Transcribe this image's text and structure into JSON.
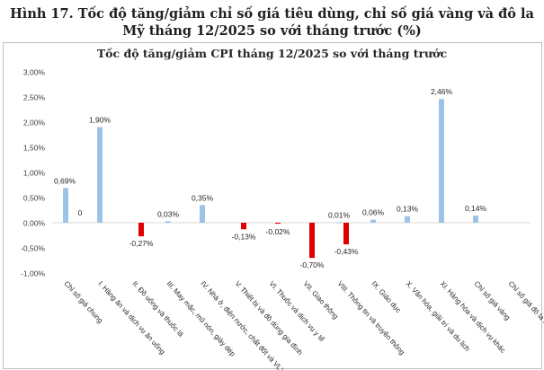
{
  "figure_title_line1": "Hình 17. Tốc độ tăng/giảm chỉ số giá tiêu dùng, chỉ số giá vàng và đô la",
  "figure_title_line2": "Mỹ tháng 12/2025 so với tháng trước (%)",
  "colors": {
    "series_a": "#9dc3e6",
    "series_b": "#e00000",
    "grid": "#d9d9d9",
    "axis_text": "#404040"
  },
  "chart_data": {
    "type": "bar",
    "title": "Tốc độ tăng/giảm CPI tháng 12/2025 so với tháng trước",
    "xlabel": "",
    "ylabel": "",
    "ylim": [
      -1.0,
      3.0
    ],
    "yticks": [
      3.0,
      2.5,
      2.0,
      1.5,
      1.0,
      0.5,
      0.0,
      -0.5,
      -1.0
    ],
    "ytick_labels": [
      "3,00%",
      "2,50%",
      "2,00%",
      "1,50%",
      "1,00%",
      "0,50%",
      "0,00%",
      "-0,50%",
      "-1,00%"
    ],
    "grid": false,
    "categories": [
      "Chỉ số giá chung",
      "I. Hàng ăn và dịch vụ ăn uống",
      "II. Đồ uống và thuốc lá",
      "III. May mặc, mũ nón, giày dép",
      "IV. Nhà ở, điện nước, chất đốt và VLXD",
      "V. Thiết bị và đồ dùng gia đình",
      "VI. Thuốc và dịch vụ y tế",
      "VII. Giao thông",
      "VIII. Thông tin và truyền thông",
      "IX. Giáo dục",
      "X. Văn hóa, giải trí và du lịch",
      "XI. Hàng hóa và dịch vụ khác",
      "Chỉ số giá vàng",
      "Chỉ số giá đô la Mỹ"
    ],
    "series": [
      {
        "values": [
          0.69,
          1.9,
          0.0,
          0.03,
          0.35,
          0.0,
          0.0,
          0.0,
          0.01,
          0.06,
          0.13,
          2.46,
          0.14,
          0.0
        ],
        "labels": [
          "0,69%",
          "1,90%",
          "",
          "0,03%",
          "0,35%",
          "",
          "",
          "",
          "0,01%",
          "0,06%",
          "0,13%",
          "2,46%",
          "0,14%",
          ""
        ]
      },
      {
        "values": [
          0.0,
          0.0,
          -0.27,
          0.0,
          0.0,
          -0.13,
          -0.02,
          -0.7,
          -0.43,
          0.0,
          0.0,
          0.0,
          0.0,
          0.0
        ],
        "labels": [
          "0",
          "",
          "-0,27%",
          "",
          "",
          "-0,13%",
          "-0,02%",
          "-0,70%",
          "-0,43%",
          "",
          "",
          "",
          "",
          ""
        ]
      }
    ]
  }
}
